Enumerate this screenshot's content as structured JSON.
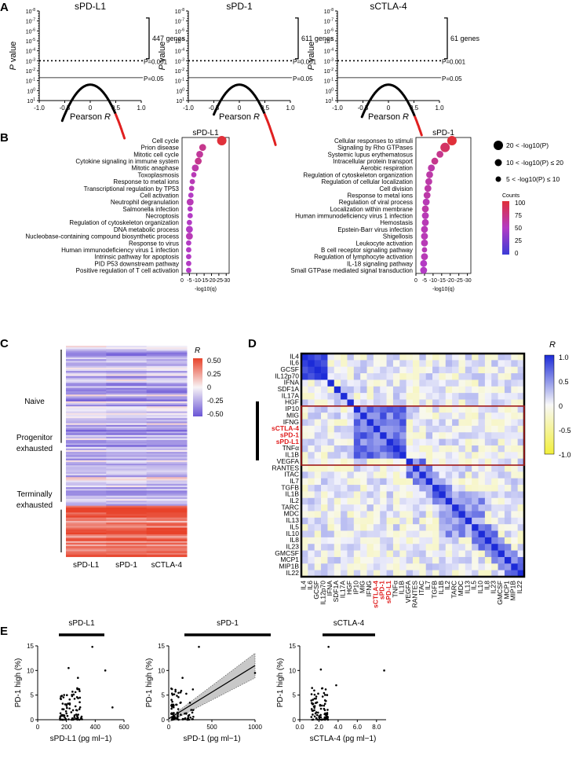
{
  "panel_labels": {
    "A": "A",
    "B": "B",
    "C": "C",
    "D": "D",
    "E": "E"
  },
  "panelA": {
    "xlabel": "Pearson",
    "xlabel_italic": "R",
    "ylabel_italic": "P",
    "ylabel_rest": " value",
    "xticks": [
      "-1.0",
      "-0.5",
      "0",
      "0.5",
      "1.0"
    ],
    "yticks": [
      "10-8",
      "10-7",
      "10-6",
      "10-5",
      "10-4",
      "10-3",
      "10-2",
      "10-1",
      "100",
      "101"
    ],
    "threshold_labels": [
      "P=0.001",
      "P=0.05"
    ],
    "plots": [
      {
        "title": "sPD-L1",
        "gene_count_label": "447 genes",
        "red_start_r": 0.5,
        "red_end_r": 0.68,
        "black_start_r": -0.55
      },
      {
        "title": "sPD-1",
        "gene_count_label": "611 genes",
        "red_start_r": 0.5,
        "red_end_r": 0.72,
        "black_start_r": -0.5
      },
      {
        "title": "sCTLA-4",
        "gene_count_label": "61 genes",
        "red_start_r": 0.52,
        "red_end_r": 0.66,
        "black_start_r": -0.52
      }
    ]
  },
  "panelB": {
    "xlabel": "-log10(q)",
    "xticks": [
      "0",
      "-5",
      "-10",
      "-15",
      "-20",
      "-25",
      "-30"
    ],
    "size_legend": [
      "20 < -log10(P)",
      "10 < -log10(P) ≤ 20",
      "5 < -log10(P) ≤ 10"
    ],
    "color_legend_title": "Counts",
    "color_ticks": [
      "100",
      "75",
      "50",
      "25",
      "0"
    ],
    "colors": {
      "low": "#3b3bd6",
      "mid": "#b33bc4",
      "high": "#e0303a"
    },
    "plots": [
      {
        "title": "sPD-L1",
        "terms": [
          {
            "label": "Cell cycle",
            "q": -27,
            "c": 100,
            "s": 3
          },
          {
            "label": "Prion disease",
            "q": -14,
            "c": 70,
            "s": 2
          },
          {
            "label": "Mitotic cell cycle",
            "q": -12,
            "c": 65,
            "s": 2
          },
          {
            "label": "Cytokine signaling in immune system",
            "q": -11,
            "c": 70,
            "s": 2
          },
          {
            "label": "Mitotic anaphase",
            "q": -9,
            "c": 60,
            "s": 2
          },
          {
            "label": "Toxoplasmosis",
            "q": -8,
            "c": 55,
            "s": 1
          },
          {
            "label": "Response to metal ions",
            "q": -7,
            "c": 55,
            "s": 1
          },
          {
            "label": "Transcriptional regulation by TP53",
            "q": -6.5,
            "c": 55,
            "s": 1
          },
          {
            "label": "Cell activation",
            "q": -6,
            "c": 50,
            "s": 1
          },
          {
            "label": "Neutrophil degranulation",
            "q": -5.5,
            "c": 55,
            "s": 2
          },
          {
            "label": "Salmonella infection",
            "q": -5.5,
            "c": 50,
            "s": 1
          },
          {
            "label": "Necroptosis",
            "q": -5.5,
            "c": 50,
            "s": 1
          },
          {
            "label": "Regulation of cytoskeleton organization",
            "q": -5,
            "c": 50,
            "s": 1
          },
          {
            "label": "DNA metabolic process",
            "q": -5,
            "c": 50,
            "s": 2
          },
          {
            "label": "Nucleobase-containing compound biosynthetic process",
            "q": -5,
            "c": 55,
            "s": 2
          },
          {
            "label": "Response to virus",
            "q": -4.5,
            "c": 50,
            "s": 1
          },
          {
            "label": "Human immunodeficiency virus 1 infection",
            "q": -4.5,
            "c": 50,
            "s": 1
          },
          {
            "label": "Intrinsic pathway for apoptosis",
            "q": -4.5,
            "c": 50,
            "s": 1
          },
          {
            "label": "PID P53 downstream pathway",
            "q": -4.5,
            "c": 50,
            "s": 1
          },
          {
            "label": "Positive regulation of T cell activation",
            "q": -4.5,
            "c": 50,
            "s": 1
          }
        ]
      },
      {
        "title": "sPD-1",
        "terms": [
          {
            "label": "Cellular responses to stimuli",
            "q": -21,
            "c": 100,
            "s": 3
          },
          {
            "label": "Signaling by Rho GTPases",
            "q": -17,
            "c": 85,
            "s": 3
          },
          {
            "label": "Systemic lupus erythematosus",
            "q": -14,
            "c": 70,
            "s": 2
          },
          {
            "label": "Intracellular protein transport",
            "q": -11,
            "c": 70,
            "s": 2
          },
          {
            "label": "Aerobic respiration",
            "q": -9,
            "c": 60,
            "s": 2
          },
          {
            "label": "Regulation of cytoskeleton organization",
            "q": -8,
            "c": 60,
            "s": 2
          },
          {
            "label": "Regulation of cellular localization",
            "q": -7.5,
            "c": 60,
            "s": 2
          },
          {
            "label": "Cell division",
            "q": -7,
            "c": 60,
            "s": 2
          },
          {
            "label": "Response to metal ions",
            "q": -6.5,
            "c": 60,
            "s": 2
          },
          {
            "label": "Regulation of viral process",
            "q": -6,
            "c": 55,
            "s": 2
          },
          {
            "label": "Localization within membrane",
            "q": -5.5,
            "c": 60,
            "s": 2
          },
          {
            "label": "Human immunodeficiency virus 1 infection",
            "q": -5.5,
            "c": 55,
            "s": 2
          },
          {
            "label": "Hemostasis",
            "q": -5.5,
            "c": 55,
            "s": 2
          },
          {
            "label": "Epstein-Barr virus infection",
            "q": -5,
            "c": 55,
            "s": 2
          },
          {
            "label": "Shigellosis",
            "q": -5,
            "c": 55,
            "s": 2
          },
          {
            "label": "Leukocyte activation",
            "q": -5,
            "c": 55,
            "s": 2
          },
          {
            "label": "B cell receptor signaling pathway",
            "q": -5,
            "c": 55,
            "s": 1
          },
          {
            "label": "Regulation of lymphocyte activation",
            "q": -5,
            "c": 55,
            "s": 2
          },
          {
            "label": "IL-18 signaling pathway",
            "q": -4.5,
            "c": 50,
            "s": 2
          },
          {
            "label": "Small GTPase mediated signal transduction",
            "q": -4.5,
            "c": 50,
            "s": 2
          }
        ]
      }
    ]
  },
  "panelC": {
    "groups": [
      "Naive",
      "Progenitor exhausted",
      "Terminally exhausted"
    ],
    "group_rows": [
      60,
      35,
      30
    ],
    "columns": [
      "sPD-L1",
      "sPD-1",
      "sCTLA-4"
    ],
    "legend_title": "R",
    "legend_ticks": [
      "0.50",
      "0.25",
      "0",
      "-0.25",
      "-0.50"
    ]
  },
  "panelD": {
    "labels": [
      "IL4",
      "IL6",
      "GCSF",
      "IL12p70",
      "IFNA",
      "SDF1A",
      "IL17A",
      "HGF",
      "IP10",
      "MIG",
      "IFNG",
      "sCTLA-4",
      "sPD-1",
      "sPD-L1",
      "TNFα",
      "IL1B",
      "VEGFA",
      "RANTES",
      "ITAC",
      "IL7",
      "TGFB",
      "IL1B",
      "IL2",
      "TARC",
      "MDC",
      "IL13",
      "IL5",
      "IL10",
      "IL8",
      "IL23",
      "GMCSF",
      "MCP1",
      "MIP1B",
      "IL22"
    ],
    "highlight": [
      "sCTLA-4",
      "sPD-1",
      "sPD-L1"
    ],
    "legend_title": "R",
    "legend_ticks": [
      "1.0",
      "0.5",
      "0",
      "-0.5",
      "-1.0"
    ]
  },
  "panelE": {
    "ylabel": "PD-1 high (%)",
    "yticks": [
      "0",
      "5",
      "10",
      "15"
    ],
    "plots": [
      {
        "title": "sPD-L1",
        "xlabel": "sPD-L1 (pg ml−1)",
        "xticks": [
          "0",
          "200",
          "400",
          "600"
        ],
        "xmax": 600
      },
      {
        "title": "sPD-1",
        "xlabel": "sPD-1 (pg ml−1)",
        "xticks": [
          "0",
          "500",
          "1000"
        ],
        "xmax": 1000
      },
      {
        "title": "sCTLA-4",
        "xlabel": "sCTLA-4 (pg ml−1)",
        "xticks": [
          "0.0",
          "2.0",
          "4.0",
          "6.0",
          "8.0"
        ],
        "xmax": 9
      }
    ]
  }
}
